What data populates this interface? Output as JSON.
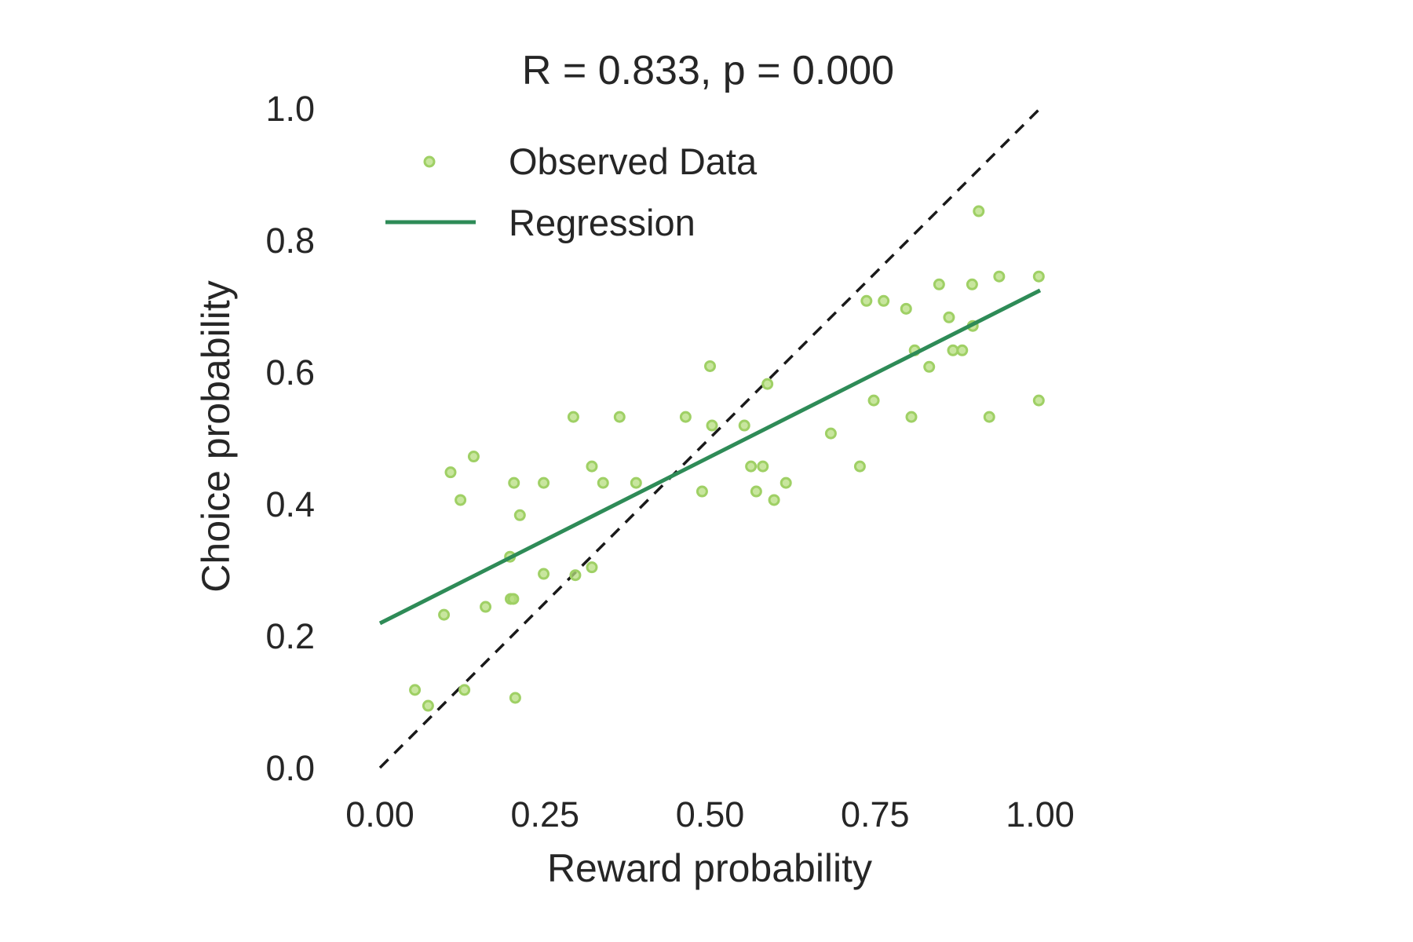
{
  "chart_data": {
    "type": "scatter",
    "title": "R = 0.833, p = 0.000",
    "xlabel": "Reward probability",
    "ylabel": "Choice probability",
    "xlim": [
      0,
      1
    ],
    "ylim": [
      0,
      1
    ],
    "xticks": [
      "0.00",
      "0.25",
      "0.50",
      "0.75",
      "1.00"
    ],
    "yticks": [
      "0.0",
      "0.2",
      "0.4",
      "0.6",
      "0.8",
      "1.0"
    ],
    "grid": false,
    "legend_position": "top-left",
    "colors": {
      "points": "#b5de7e",
      "points_edge": "#9fd065",
      "regression": "#2e8b57",
      "identity": "#1a1a1a",
      "text": "#262626"
    },
    "series": [
      {
        "name": "Observed Data",
        "kind": "scatter",
        "points": [
          [
            0.053,
            0.118
          ],
          [
            0.073,
            0.094
          ],
          [
            0.097,
            0.232
          ],
          [
            0.107,
            0.448
          ],
          [
            0.122,
            0.406
          ],
          [
            0.128,
            0.118
          ],
          [
            0.142,
            0.472
          ],
          [
            0.16,
            0.244
          ],
          [
            0.197,
            0.32
          ],
          [
            0.198,
            0.256
          ],
          [
            0.202,
            0.256
          ],
          [
            0.203,
            0.432
          ],
          [
            0.205,
            0.106
          ],
          [
            0.212,
            0.383
          ],
          [
            0.248,
            0.432
          ],
          [
            0.248,
            0.294
          ],
          [
            0.293,
            0.532
          ],
          [
            0.296,
            0.292
          ],
          [
            0.321,
            0.304
          ],
          [
            0.321,
            0.457
          ],
          [
            0.338,
            0.432
          ],
          [
            0.363,
            0.532
          ],
          [
            0.388,
            0.432
          ],
          [
            0.463,
            0.532
          ],
          [
            0.488,
            0.419
          ],
          [
            0.5,
            0.609
          ],
          [
            0.503,
            0.519
          ],
          [
            0.552,
            0.519
          ],
          [
            0.562,
            0.457
          ],
          [
            0.57,
            0.419
          ],
          [
            0.58,
            0.457
          ],
          [
            0.587,
            0.582
          ],
          [
            0.597,
            0.406
          ],
          [
            0.615,
            0.432
          ],
          [
            0.683,
            0.507
          ],
          [
            0.727,
            0.457
          ],
          [
            0.737,
            0.708
          ],
          [
            0.748,
            0.557
          ],
          [
            0.763,
            0.708
          ],
          [
            0.797,
            0.696
          ],
          [
            0.805,
            0.532
          ],
          [
            0.81,
            0.633
          ],
          [
            0.832,
            0.608
          ],
          [
            0.847,
            0.733
          ],
          [
            0.862,
            0.683
          ],
          [
            0.868,
            0.633
          ],
          [
            0.882,
            0.633
          ],
          [
            0.897,
            0.733
          ],
          [
            0.898,
            0.67
          ],
          [
            0.907,
            0.844
          ],
          [
            0.923,
            0.532
          ],
          [
            0.938,
            0.745
          ],
          [
            0.998,
            0.557
          ],
          [
            0.998,
            0.745
          ]
        ]
      },
      {
        "name": "Regression",
        "kind": "line",
        "points": [
          [
            0.0,
            0.219
          ],
          [
            1.0,
            0.724
          ]
        ]
      },
      {
        "kind": "dashed-line",
        "points": [
          [
            0.0,
            0.0
          ],
          [
            1.0,
            1.0
          ]
        ]
      }
    ]
  }
}
